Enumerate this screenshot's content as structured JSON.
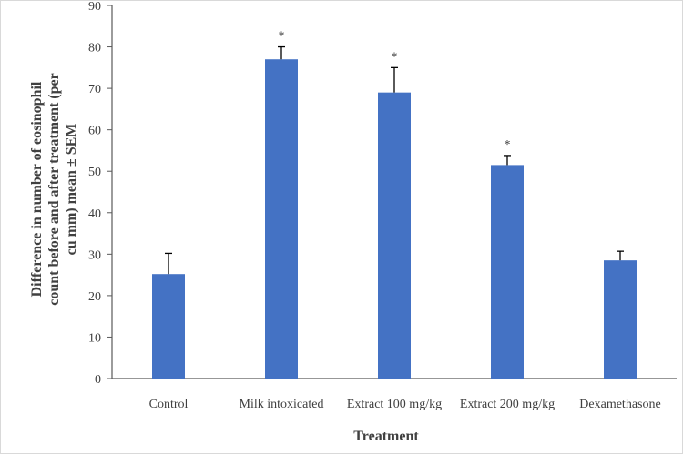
{
  "chart_data": {
    "type": "bar",
    "categories": [
      "Control",
      "Milk intoxicated",
      "Extract 100 mg/kg",
      "Extract 200 mg/kg",
      "Dexamethasone"
    ],
    "values": [
      25.2,
      77,
      69,
      51.5,
      28.5
    ],
    "error_plus": [
      5,
      3,
      6,
      2.3,
      2.2
    ],
    "significance": [
      "",
      "*",
      "*",
      "*",
      ""
    ],
    "xlabel": "Treatment",
    "ylabel_lines": [
      "Difference in number of eosinophil",
      "count before and after treatment (per",
      "cu mm) mean ± SEM"
    ],
    "ylim": [
      0,
      90
    ],
    "yticks": [
      0,
      10,
      20,
      30,
      40,
      50,
      60,
      70,
      80,
      90
    ],
    "bar_color": "#4472c4",
    "grid": false,
    "legend": "none"
  }
}
